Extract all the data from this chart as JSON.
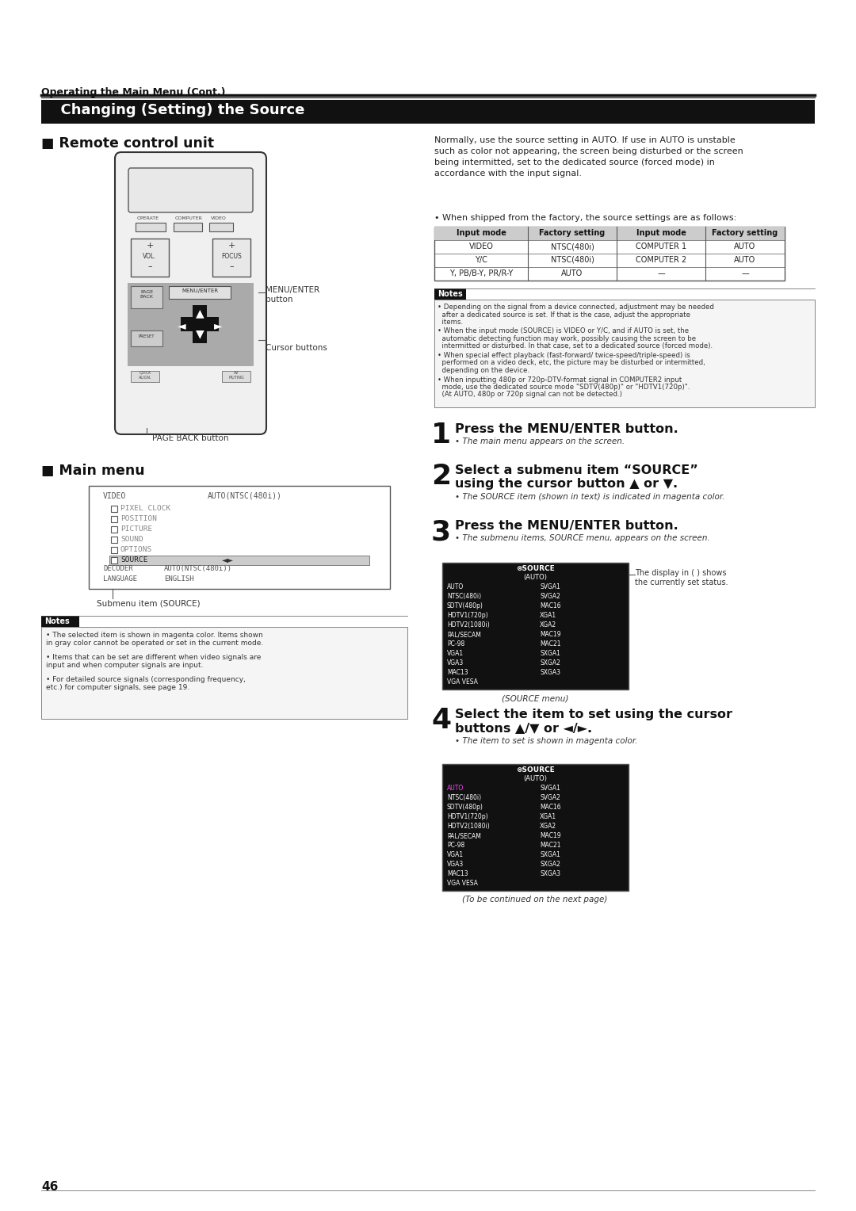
{
  "page_bg": "#ffffff",
  "top_label": "Operating the Main Menu (Cont.)",
  "section_title": "  Changing (Setting) the Source",
  "section_title_bg": "#111111",
  "section_title_color": "#ffffff",
  "page_number": "46",
  "right_intro": "Normally, use the source setting in AUTO. If use in AUTO is unstable\nsuch as color not appearing, the screen being disturbed or the screen\nbeing intermitted, set to the dedicated source (forced mode) in\naccordance with the input signal.",
  "when_shipped": "• When shipped from the factory, the source settings are as follows:",
  "table_headers": [
    "Input mode",
    "Factory setting",
    "Input mode",
    "Factory setting"
  ],
  "table_rows": [
    [
      "VIDEO",
      "NTSC(480i)",
      "COMPUTER 1",
      "AUTO"
    ],
    [
      "Y/C",
      "NTSC(480i)",
      "COMPUTER 2",
      "AUTO"
    ],
    [
      "Y, PB/B-Y, PR/R-Y",
      "AUTO",
      "—",
      "—"
    ]
  ],
  "notes_label": "Notes",
  "notes_items": [
    "Depending on the signal from a device connected, adjustment may be needed\nafter a dedicated source is set. If that is the case, adjust the appropriate\nitems.",
    "When the input mode (SOURCE) is VIDEO or Y/C, and if AUTO is set, the\nautomatic detecting function may work, possibly causing the screen to be\nintermitted or disturbed. In that case, set to a dedicated source (forced mode).",
    "When special effect playback (fast-forward/ twice-speed/triple-speed) is\nperformed on a video deck, etc, the picture may be disturbed or intermitted,\ndepending on the device.",
    "When inputting 480p or 720p-DTV-format signal in COMPUTER2 input\nmode, use the dedicated source mode \"SDTV(480p)\" or \"HDTV1(720p)\".\n(At AUTO, 480p or 720p signal can not be detected.)"
  ],
  "step1_title": "Press the MENU/ENTER button.",
  "step1_desc": "The main menu appears on the screen.",
  "step2_title": "Select a submenu item “SOURCE”\nusing the cursor button ▲ or ▼.",
  "step2_desc": "The SOURCE item (shown in text) is indicated in magenta color.",
  "step3_title": "Press the MENU/ENTER button.",
  "step3_desc": "The submenu items, SOURCE menu, appears on the screen.",
  "step4_title": "Select the item to set using the cursor\nbuttons ▲/▼ or ◄/►.",
  "step4_desc": "The item to set is shown in magenta color.",
  "continued": "(To be continued on the next page)",
  "left_notes_items": [
    "The selected item is shown in magenta color. Items shown\nin gray color cannot be operated or set in the current mode.",
    "Items that can be set are different when video signals are\ninput and when computer signals are input.",
    "For detailed source signals (corresponding frequency,\netc.) for computer signals, see page 19."
  ],
  "display_status_text": "The display in ( ) shows\nthe currently set status.",
  "source_menu_items_left": [
    "AUTO",
    "NTSC(480i)",
    "SDTV(480p)",
    "HDTV1(720p)",
    "HDTV2(1080i)",
    "PAL/SECAM",
    "PC-98",
    "VGA1",
    "VGA3",
    "MAC13",
    "VGA VESA"
  ],
  "source_menu_items_right": [
    "SVGA1",
    "SVGA2",
    "MAC16",
    "XGA1",
    "XGA2",
    "MAC19",
    "MAC21",
    "SXGA1",
    "SXGA2",
    "SXGA3"
  ],
  "source_menu_items_left2": [
    "AUTO",
    "NTSC(480i)",
    "SDTV(480p)",
    "HDTV1(720p)",
    "HDTV2(1080i)",
    "PAL/SECAM",
    "PC-98",
    "VGA1",
    "VGA3",
    "MAC13",
    "VGA VESA"
  ],
  "source_menu_items_right2": [
    "SVGA1",
    "SVGA2",
    "MAC16",
    "XGA1",
    "XGA2",
    "MAC19",
    "MAC21",
    "SXGA1",
    "SXGA2",
    "SXGA3"
  ],
  "main_menu_items": [
    "PIXEL CLOCK",
    "POSITION",
    "PICTURE",
    "SOUND",
    "OPTIONS",
    "SOURCE"
  ],
  "submenu_label": "Submenu item (SOURCE)"
}
